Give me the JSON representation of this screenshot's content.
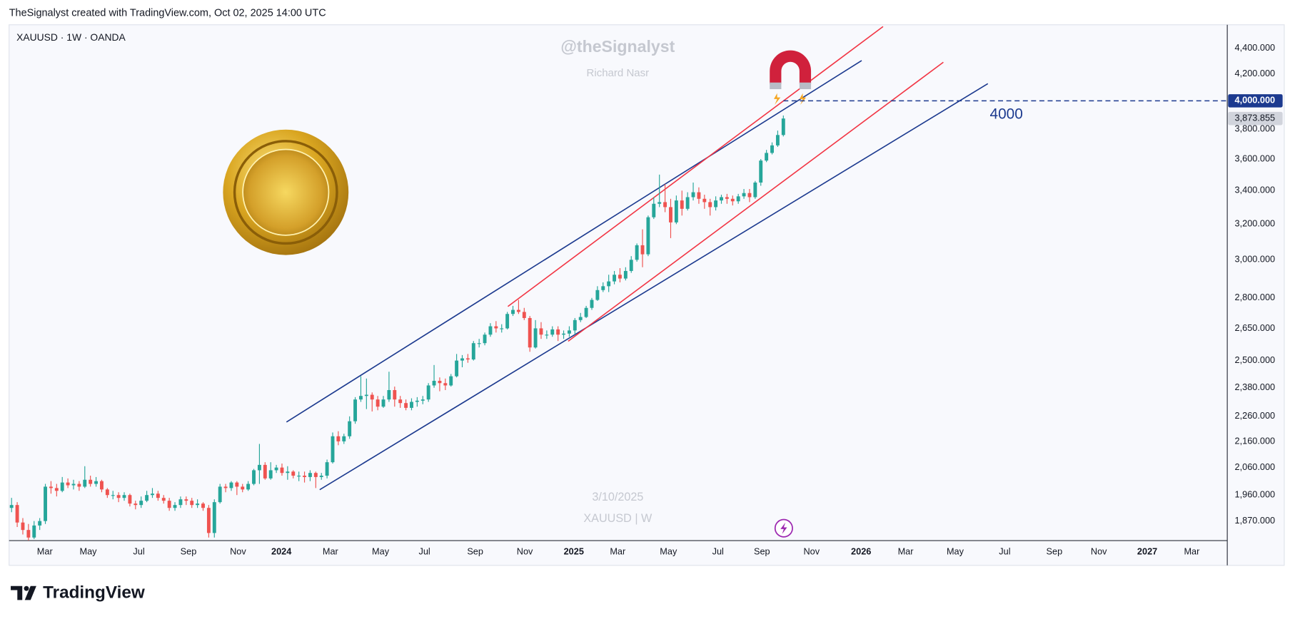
{
  "header": "TheSignalyst created with TradingView.com, Oct 02, 2025 14:00 UTC",
  "footer_logo": "TradingView",
  "chart_data": {
    "type": "candlestick",
    "symbol": "XAUUSD · 1W · OANDA",
    "watermarks": [
      "@theSignalyst",
      "Richard Nasr",
      "3/10/2025",
      "XAUUSD | W"
    ],
    "up_color": "#26a69a",
    "down_color": "#ef5350",
    "log_scale": true,
    "grid": false,
    "xlim": [
      -0.44,
      215.8
    ],
    "xticks": [
      {
        "value": 5.9,
        "label": "Mar"
      },
      {
        "value": 13.6,
        "label": "May"
      },
      {
        "value": 22.6,
        "label": "Jul"
      },
      {
        "value": 31.4,
        "label": "Sep"
      },
      {
        "value": 40.2,
        "label": "Nov"
      },
      {
        "value": 47.9,
        "label": "2024"
      },
      {
        "value": 56.6,
        "label": "Mar"
      },
      {
        "value": 65.5,
        "label": "May"
      },
      {
        "value": 73.3,
        "label": "Jul"
      },
      {
        "value": 82.3,
        "label": "Sep"
      },
      {
        "value": 91.1,
        "label": "Nov"
      },
      {
        "value": 99.8,
        "label": "2025"
      },
      {
        "value": 107.6,
        "label": "Mar"
      },
      {
        "value": 116.6,
        "label": "May"
      },
      {
        "value": 125.4,
        "label": "Jul"
      },
      {
        "value": 133.2,
        "label": "Sep"
      },
      {
        "value": 142.0,
        "label": "Nov"
      },
      {
        "value": 150.8,
        "label": "2026"
      },
      {
        "value": 158.7,
        "label": "Mar"
      },
      {
        "value": 167.5,
        "label": "May"
      },
      {
        "value": 176.3,
        "label": "Jul"
      },
      {
        "value": 185.1,
        "label": "Sep"
      },
      {
        "value": 193.0,
        "label": "Nov"
      },
      {
        "value": 201.6,
        "label": "2027"
      },
      {
        "value": 209.5,
        "label": "Mar"
      }
    ],
    "ylim": [
      1805,
      4590
    ],
    "yticks": [
      {
        "value": 4400,
        "label": "4,400.000"
      },
      {
        "value": 4200,
        "label": "4,200.000"
      },
      {
        "value": 3800,
        "label": "3,800.000"
      },
      {
        "value": 3600,
        "label": "3,600.000"
      },
      {
        "value": 3400,
        "label": "3,400.000"
      },
      {
        "value": 3200,
        "label": "3,200.000"
      },
      {
        "value": 3000,
        "label": "3,000.000"
      },
      {
        "value": 2800,
        "label": "2,800.000"
      },
      {
        "value": 2650,
        "label": "2,650.000"
      },
      {
        "value": 2500,
        "label": "2,500.000"
      },
      {
        "value": 2380,
        "label": "2,380.000"
      },
      {
        "value": 2260,
        "label": "2,260.000"
      },
      {
        "value": 2160,
        "label": "2,160.000"
      },
      {
        "value": 2060,
        "label": "2,060.000"
      },
      {
        "value": 1960,
        "label": "1,960.000"
      },
      {
        "value": 1870,
        "label": "1,870.000"
      }
    ],
    "open": [
      1915,
      1925,
      1865,
      1840,
      1815,
      1855,
      1870,
      1990,
      1985,
      1975,
      2005,
      1995,
      2000,
      1990,
      2015,
      2000,
      2010,
      1980,
      1960,
      1960,
      1950,
      1960,
      1930,
      1925,
      1940,
      1960,
      1965,
      1950,
      1940,
      1915,
      1925,
      1945,
      1940,
      1925,
      1930,
      1915,
      1830,
      1935,
      1990,
      1985,
      2005,
      1990,
      1980,
      2000,
      2050,
      2070,
      2020,
      2050,
      2060,
      2040,
      2045,
      2030,
      2030,
      2025,
      2040,
      2025,
      2030,
      2080,
      2180,
      2160,
      2180,
      2240,
      2330,
      2345,
      2350,
      2330,
      2300,
      2330,
      2370,
      2330,
      2315,
      2295,
      2320,
      2325,
      2330,
      2390,
      2410,
      2400,
      2390,
      2430,
      2500,
      2510,
      2505,
      2580,
      2580,
      2620,
      2660,
      2650,
      2650,
      2720,
      2740,
      2730,
      2700,
      2560,
      2650,
      2620,
      2620,
      2645,
      2620,
      2625,
      2640,
      2690,
      2705,
      2750,
      2790,
      2840,
      2860,
      2885,
      2920,
      2900,
      2940,
      3000,
      3080,
      3030,
      3240,
      3320,
      3330,
      3300,
      3210,
      3340,
      3290,
      3360,
      3390,
      3350,
      3330,
      3300,
      3340,
      3360,
      3350,
      3335,
      3365,
      3385,
      3360,
      3450,
      3590,
      3640,
      3690,
      3760
    ],
    "high": [
      1950,
      1935,
      1880,
      1860,
      1870,
      1880,
      2000,
      2010,
      2000,
      2025,
      2020,
      2015,
      2010,
      2065,
      2030,
      2025,
      2015,
      1985,
      1975,
      1970,
      1970,
      1965,
      1940,
      1955,
      1975,
      1985,
      1975,
      1960,
      1950,
      1935,
      1955,
      1955,
      1950,
      1945,
      1935,
      1925,
      1945,
      2000,
      2000,
      2010,
      2010,
      2000,
      2010,
      2055,
      2150,
      2080,
      2080,
      2070,
      2075,
      2065,
      2050,
      2045,
      2045,
      2050,
      2045,
      2040,
      2090,
      2195,
      2200,
      2190,
      2260,
      2340,
      2430,
      2420,
      2360,
      2345,
      2345,
      2450,
      2385,
      2345,
      2330,
      2335,
      2340,
      2345,
      2400,
      2480,
      2425,
      2420,
      2440,
      2530,
      2525,
      2530,
      2590,
      2600,
      2630,
      2675,
      2685,
      2670,
      2730,
      2760,
      2790,
      2750,
      2710,
      2690,
      2680,
      2640,
      2660,
      2660,
      2640,
      2660,
      2700,
      2725,
      2760,
      2800,
      2860,
      2880,
      2920,
      2940,
      2955,
      2960,
      3020,
      3090,
      3170,
      3250,
      3360,
      3500,
      3440,
      3350,
      3370,
      3400,
      3390,
      3450,
      3420,
      3375,
      3350,
      3365,
      3375,
      3380,
      3370,
      3380,
      3410,
      3410,
      3460,
      3600,
      3660,
      3710,
      3790,
      3895
    ],
    "low": [
      1900,
      1850,
      1825,
      1805,
      1810,
      1840,
      1860,
      1965,
      1955,
      1970,
      1985,
      1980,
      1975,
      1985,
      1990,
      1990,
      1970,
      1950,
      1945,
      1935,
      1940,
      1920,
      1910,
      1915,
      1935,
      1950,
      1940,
      1930,
      1905,
      1905,
      1915,
      1925,
      1915,
      1915,
      1905,
      1815,
      1815,
      1930,
      1970,
      1975,
      1960,
      1970,
      1975,
      1995,
      2000,
      2015,
      2015,
      2040,
      2030,
      2015,
      2020,
      2010,
      2005,
      2010,
      1985,
      2015,
      2020,
      2075,
      2145,
      2150,
      2170,
      2230,
      2320,
      2290,
      2280,
      2285,
      2295,
      2320,
      2300,
      2295,
      2285,
      2285,
      2300,
      2310,
      2320,
      2380,
      2365,
      2370,
      2385,
      2425,
      2470,
      2490,
      2500,
      2560,
      2570,
      2610,
      2630,
      2630,
      2645,
      2710,
      2720,
      2690,
      2540,
      2555,
      2600,
      2600,
      2610,
      2590,
      2600,
      2610,
      2620,
      2680,
      2700,
      2740,
      2785,
      2830,
      2830,
      2870,
      2880,
      2890,
      2930,
      2990,
      2960,
      3020,
      3230,
      3300,
      3270,
      3120,
      3200,
      3250,
      3280,
      3340,
      3320,
      3290,
      3250,
      3280,
      3320,
      3320,
      3310,
      3320,
      3350,
      3330,
      3350,
      3430,
      3580,
      3630,
      3680,
      3750
    ],
    "close": [
      1925,
      1865,
      1840,
      1815,
      1855,
      1870,
      1990,
      1985,
      1975,
      2005,
      1995,
      2000,
      1990,
      2015,
      2000,
      2010,
      1980,
      1960,
      1960,
      1950,
      1960,
      1930,
      1925,
      1940,
      1960,
      1965,
      1950,
      1940,
      1915,
      1925,
      1945,
      1940,
      1925,
      1930,
      1915,
      1830,
      1935,
      1990,
      1985,
      2005,
      1990,
      1980,
      2000,
      2050,
      2070,
      2020,
      2050,
      2060,
      2040,
      2045,
      2030,
      2030,
      2025,
      2040,
      2025,
      2030,
      2080,
      2180,
      2160,
      2180,
      2240,
      2330,
      2345,
      2350,
      2330,
      2300,
      2330,
      2370,
      2330,
      2315,
      2295,
      2320,
      2325,
      2330,
      2390,
      2410,
      2400,
      2390,
      2430,
      2500,
      2510,
      2505,
      2580,
      2580,
      2620,
      2660,
      2650,
      2650,
      2720,
      2740,
      2730,
      2700,
      2560,
      2650,
      2620,
      2620,
      2645,
      2620,
      2625,
      2640,
      2690,
      2705,
      2750,
      2790,
      2840,
      2860,
      2885,
      2920,
      2900,
      2940,
      3000,
      3080,
      3030,
      3240,
      3320,
      3330,
      3300,
      3210,
      3340,
      3290,
      3360,
      3390,
      3350,
      3330,
      3300,
      3340,
      3360,
      3350,
      3335,
      3365,
      3385,
      3360,
      3450,
      3590,
      3640,
      3690,
      3760,
      3873.855
    ],
    "last_close_label": "3,873.855",
    "level": {
      "value": 4000,
      "label": "4,000.000",
      "color": "#1c3a8f",
      "start": 137
    },
    "trend_lines": [
      {
        "color": "#1c3a8f",
        "x": [
          48.8,
          150.9
        ],
        "y": [
          2237,
          4302
        ]
      },
      {
        "color": "#1c3a8f",
        "x": [
          54.7,
          173.3
        ],
        "y": [
          1979,
          4126
        ]
      },
      {
        "color": "#f23645",
        "x": [
          88.1,
          154.7
        ],
        "y": [
          2757,
          4575
        ]
      },
      {
        "color": "#f23645",
        "x": [
          98.8,
          165.4
        ],
        "y": [
          2589,
          4289
        ]
      }
    ]
  }
}
